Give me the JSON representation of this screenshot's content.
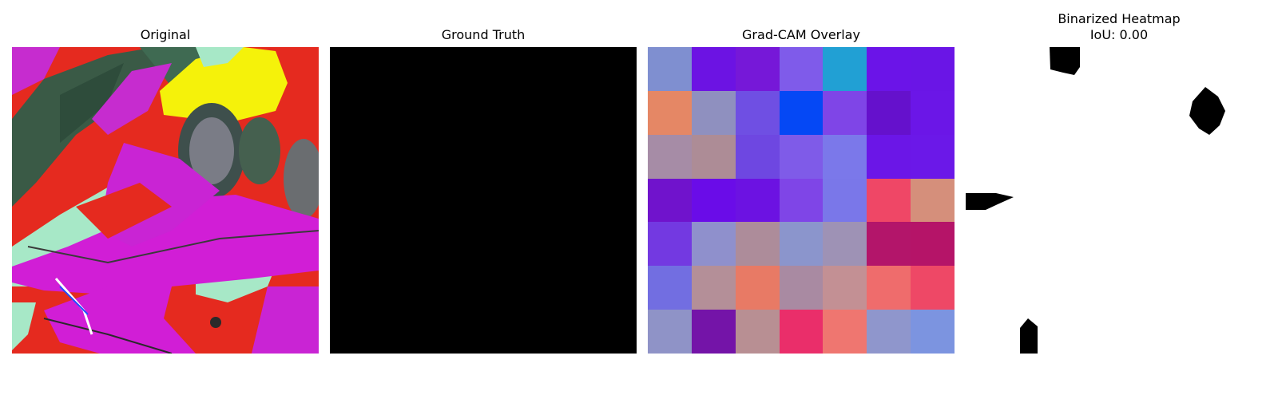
{
  "panels": {
    "original": {
      "title": "Original"
    },
    "ground_truth": {
      "title": "Ground Truth"
    },
    "gradcam": {
      "title": "Grad-CAM Overlay",
      "grid": [
        [
          "#7f8fd0",
          "#6c13e3",
          "#7618d8",
          "#7f5bea",
          "#21a0d4",
          "#6b14e8",
          "#6a15e6"
        ],
        [
          "#e58765",
          "#8f90bf",
          "#6f4fe3",
          "#0548f5",
          "#7f45e7",
          "#6511cc",
          "#6b16e7"
        ],
        [
          "#a68ca6",
          "#ad8c96",
          "#6e47e1",
          "#7f5be8",
          "#7b78ea",
          "#6b16e7",
          "#6b18e8"
        ],
        [
          "#7013cc",
          "#6a0ce8",
          "#6c12e2",
          "#7f45e7",
          "#7a77e9",
          "#ef4766",
          "#d58f7b"
        ],
        [
          "#7339e1",
          "#8f90cc",
          "#ad8c9a",
          "#8b95cc",
          "#9e92b5",
          "#b3156a",
          "#b51468"
        ],
        [
          "#726ee1",
          "#b48f98",
          "#e87a65",
          "#a98aa2",
          "#c39094",
          "#ef6c6c",
          "#ee4866"
        ],
        [
          "#8f93c7",
          "#7414a8",
          "#b88f93",
          "#ea2e6a",
          "#ef7670",
          "#8f96cc",
          "#7c94e0"
        ]
      ]
    },
    "binarized": {
      "title_line1": "Binarized Heatmap",
      "title_line2": "IoU: 0.00"
    }
  }
}
